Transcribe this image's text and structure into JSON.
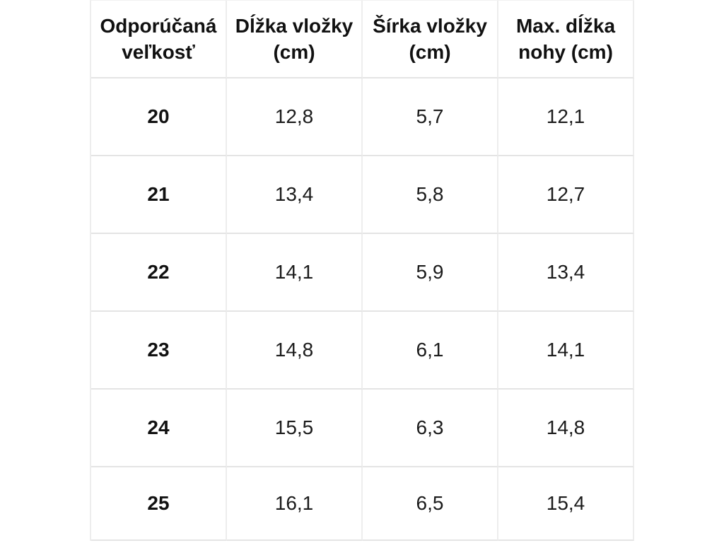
{
  "colors": {
    "background": "#ffffff",
    "text": "#1b1b1b",
    "grid_line_vertical": "#ededed",
    "grid_line_horizontal": "#e4e4e4"
  },
  "chart_data": {
    "type": "table",
    "title": "",
    "columns": [
      "Odporúčaná veľkosť",
      "Dĺžka vložky (cm)",
      "Šírka vložky (cm)",
      "Max. dĺžka nohy (cm)"
    ],
    "rows": [
      [
        "20",
        "12,8",
        "5,7",
        "12,1"
      ],
      [
        "21",
        "13,4",
        "5,8",
        "12,7"
      ],
      [
        "22",
        "14,1",
        "5,9",
        "13,4"
      ],
      [
        "23",
        "14,8",
        "6,1",
        "14,1"
      ],
      [
        "24",
        "15,5",
        "6,3",
        "14,8"
      ],
      [
        "25",
        "16,1",
        "6,5",
        "15,4"
      ]
    ],
    "layout_hints": {
      "header_row": true,
      "first_column_bold": true,
      "grid_on": true,
      "alignment": "center"
    }
  }
}
